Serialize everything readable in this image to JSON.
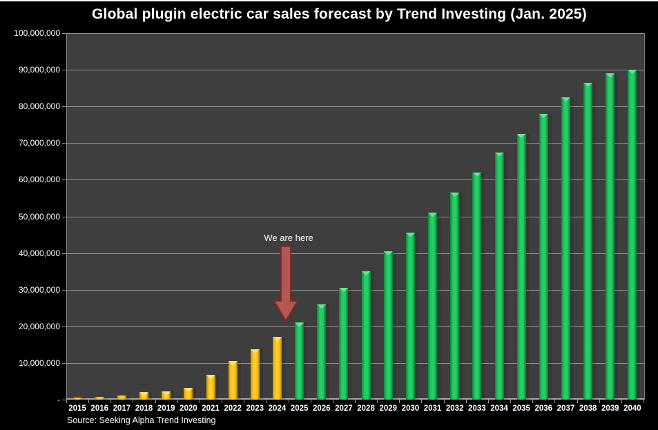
{
  "meta": {
    "background_color": "#000000",
    "plot_background_color": "#3E3E3E",
    "gridline_color": "#939393",
    "text_color": "#FFFFFF"
  },
  "title": "Global plugin electric car sales forecast by Trend Investing (Jan. 2025)",
  "source_note": "Source: Seeking Alpha Trend Investing",
  "y_axis": {
    "tick_labels": [
      "100,000,000",
      "90,000,000",
      "80,000,000",
      "70,000,000",
      "60,000,000",
      "50,000,000",
      "40,000,000",
      "30,000,000",
      "20,000,000",
      "10,000,000",
      "-"
    ]
  },
  "chart_data": {
    "type": "bar",
    "title": "Global plugin electric car sales forecast by Trend Investing (Jan. 2025)",
    "xlabel": "",
    "ylabel": "",
    "ylim": [
      0,
      100000000
    ],
    "ytick_interval": 10000000,
    "grid": "horizontal-only",
    "legend_position": "none",
    "categories": [
      "2015",
      "2016",
      "2017",
      "2018",
      "2019",
      "2020",
      "2021",
      "2022",
      "2023",
      "2024",
      "2025",
      "2026",
      "2027",
      "2028",
      "2029",
      "2030",
      "2031",
      "2032",
      "2033",
      "2034",
      "2035",
      "2036",
      "2037",
      "2038",
      "2039",
      "2040"
    ],
    "series": [
      {
        "name": "historical-yellow-bars",
        "years": "2015-2024",
        "color": "#FFC61C",
        "values": [
          550000,
          800000,
          1200000,
          2000000,
          2200000,
          3200000,
          6700000,
          10500000,
          13700000,
          17100000
        ]
      },
      {
        "name": "forecast-green-bars",
        "years": "2025-2040",
        "color": "#21C960",
        "values": [
          21000000,
          26000000,
          30500000,
          35000000,
          40500000,
          45500000,
          51000000,
          56500000,
          62000000,
          67500000,
          72500000,
          78000000,
          82500000,
          86500000,
          89000000,
          90000000
        ]
      }
    ],
    "annotation": {
      "text": "We are here",
      "arrow_color": "#B25852",
      "arrow_outline_color": "#7E2B27",
      "points_at": "2024/2025 boundary"
    }
  }
}
